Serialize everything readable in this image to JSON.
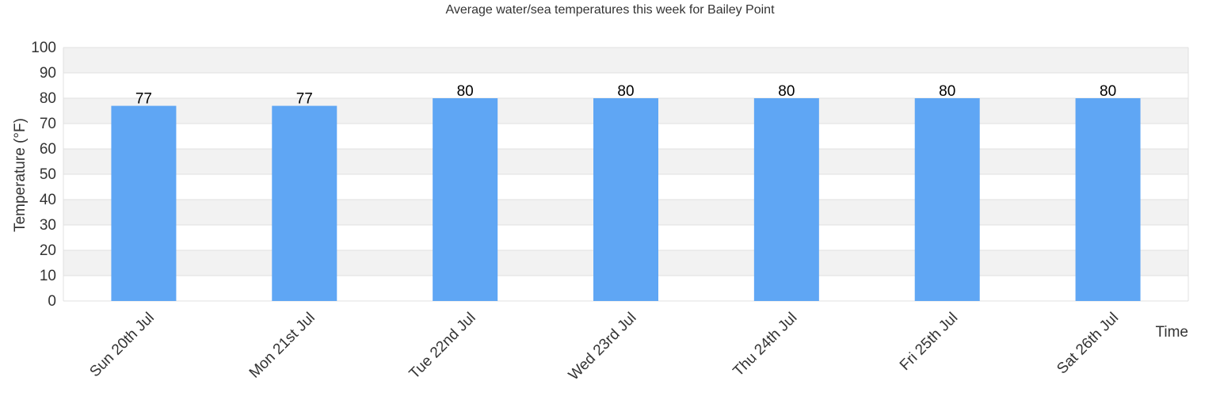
{
  "chart_data": {
    "type": "bar",
    "title": "Average water/sea temperatures this week for Bailey Point",
    "xlabel": "Time",
    "ylabel": "Temperature (°F)",
    "ylim": [
      0,
      100
    ],
    "yticks": [
      0,
      10,
      20,
      30,
      40,
      50,
      60,
      70,
      80,
      90,
      100
    ],
    "categories": [
      "Sun 20th Jul",
      "Mon 21st Jul",
      "Tue 22nd Jul",
      "Wed 23rd Jul",
      "Thu 24th Jul",
      "Fri 25th Jul",
      "Sat 26th Jul"
    ],
    "values": [
      77,
      77,
      80,
      80,
      80,
      80,
      80
    ],
    "data_labels": [
      "77",
      "77",
      "80",
      "80",
      "80",
      "80",
      "80"
    ],
    "grid": true,
    "legend": "none",
    "colors": {
      "bar": "#5fa6f4",
      "band_alt": "#f2f2f2",
      "band_base": "#ffffff",
      "grid_line": "#e0e0e0",
      "axis_text": "#333333",
      "title_text": "#333333"
    }
  }
}
